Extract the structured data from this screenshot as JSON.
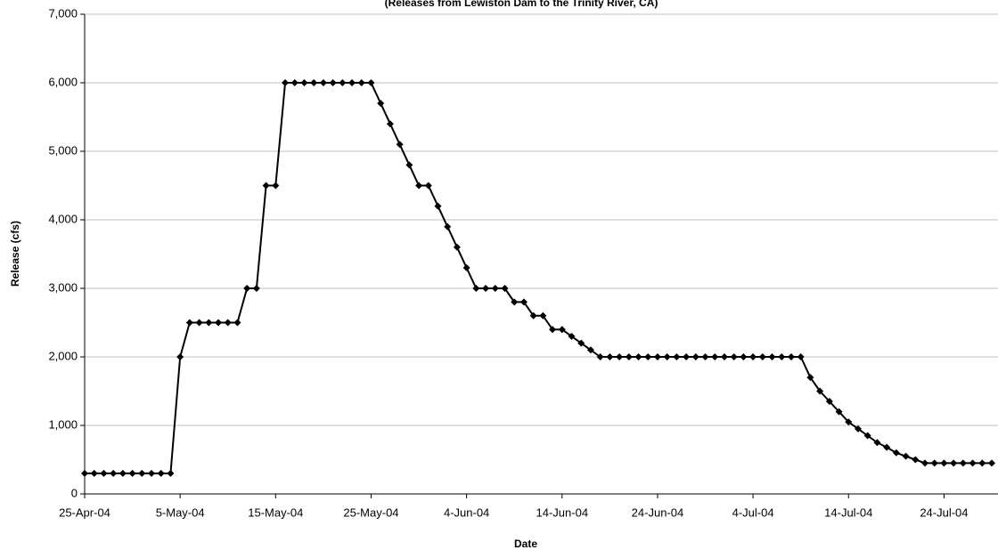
{
  "chart_data": {
    "type": "line",
    "subtitle": "(Releases from Lewiston Dam to the Trinity River, CA)",
    "x_label": "Date",
    "y_label": "Release (cfs)",
    "x": [
      "2004-04-25",
      "2004-04-26",
      "2004-04-27",
      "2004-04-28",
      "2004-04-29",
      "2004-04-30",
      "2004-05-01",
      "2004-05-02",
      "2004-05-03",
      "2004-05-04",
      "2004-05-05",
      "2004-05-06",
      "2004-05-07",
      "2004-05-08",
      "2004-05-09",
      "2004-05-10",
      "2004-05-11",
      "2004-05-12",
      "2004-05-13",
      "2004-05-14",
      "2004-05-15",
      "2004-05-16",
      "2004-05-17",
      "2004-05-18",
      "2004-05-19",
      "2004-05-20",
      "2004-05-21",
      "2004-05-22",
      "2004-05-23",
      "2004-05-24",
      "2004-05-25",
      "2004-05-26",
      "2004-05-27",
      "2004-05-28",
      "2004-05-29",
      "2004-05-30",
      "2004-05-31",
      "2004-06-01",
      "2004-06-02",
      "2004-06-03",
      "2004-06-04",
      "2004-06-05",
      "2004-06-06",
      "2004-06-07",
      "2004-06-08",
      "2004-06-09",
      "2004-06-10",
      "2004-06-11",
      "2004-06-12",
      "2004-06-13",
      "2004-06-14",
      "2004-06-15",
      "2004-06-16",
      "2004-06-17",
      "2004-06-18",
      "2004-06-19",
      "2004-06-20",
      "2004-06-21",
      "2004-06-22",
      "2004-06-23",
      "2004-06-24",
      "2004-06-25",
      "2004-06-26",
      "2004-06-27",
      "2004-06-28",
      "2004-06-29",
      "2004-06-30",
      "2004-07-01",
      "2004-07-02",
      "2004-07-03",
      "2004-07-04",
      "2004-07-05",
      "2004-07-06",
      "2004-07-07",
      "2004-07-08",
      "2004-07-09",
      "2004-07-10",
      "2004-07-11",
      "2004-07-12",
      "2004-07-13",
      "2004-07-14",
      "2004-07-15",
      "2004-07-16",
      "2004-07-17",
      "2004-07-18",
      "2004-07-19",
      "2004-07-20",
      "2004-07-21",
      "2004-07-22",
      "2004-07-23",
      "2004-07-24",
      "2004-07-25",
      "2004-07-26",
      "2004-07-27",
      "2004-07-28",
      "2004-07-29"
    ],
    "series": [
      {
        "color": "#000000",
        "values": [
          300,
          300,
          300,
          300,
          300,
          300,
          300,
          300,
          300,
          300,
          2000,
          2500,
          2500,
          2500,
          2500,
          2500,
          2500,
          3000,
          3000,
          4500,
          4500,
          6000,
          6000,
          6000,
          6000,
          6000,
          6000,
          6000,
          6000,
          6000,
          6000,
          5700,
          5400,
          5100,
          4800,
          4500,
          4500,
          4200,
          3900,
          3600,
          3300,
          3000,
          3000,
          3000,
          3000,
          2800,
          2800,
          2600,
          2600,
          2400,
          2400,
          2300,
          2200,
          2100,
          2000,
          2000,
          2000,
          2000,
          2000,
          2000,
          2000,
          2000,
          2000,
          2000,
          2000,
          2000,
          2000,
          2000,
          2000,
          2000,
          2000,
          2000,
          2000,
          2000,
          2000,
          2000,
          1700,
          1500,
          1350,
          1200,
          1050,
          950,
          850,
          750,
          680,
          600,
          550,
          500,
          450,
          450,
          450,
          450,
          450,
          450,
          450,
          450
        ]
      }
    ],
    "xlim": [
      "2004-04-25",
      "2004-07-29"
    ],
    "xticks": [
      {
        "value": "2004-04-25",
        "label": "25-Apr-04"
      },
      {
        "value": "2004-05-05",
        "label": "5-May-04"
      },
      {
        "value": "2004-05-15",
        "label": "15-May-04"
      },
      {
        "value": "2004-05-25",
        "label": "25-May-04"
      },
      {
        "value": "2004-06-04",
        "label": "4-Jun-04"
      },
      {
        "value": "2004-06-14",
        "label": "14-Jun-04"
      },
      {
        "value": "2004-06-24",
        "label": "24-Jun-04"
      },
      {
        "value": "2004-07-04",
        "label": "4-Jul-04"
      },
      {
        "value": "2004-07-14",
        "label": "14-Jul-04"
      },
      {
        "value": "2004-07-24",
        "label": "24-Jul-04"
      }
    ],
    "ylim": [
      0,
      7000
    ],
    "yticks": [
      0,
      {
        "value": 1000,
        "label": "1,000"
      },
      {
        "value": 2000,
        "label": "2,000"
      },
      {
        "value": 3000,
        "label": "3,000"
      },
      {
        "value": 4000,
        "label": "4,000"
      },
      {
        "value": 5000,
        "label": "5,000"
      },
      {
        "value": 6000,
        "label": "6,000"
      },
      {
        "value": 7000,
        "label": "7,000"
      }
    ],
    "grid": true,
    "marker": "diamond"
  }
}
